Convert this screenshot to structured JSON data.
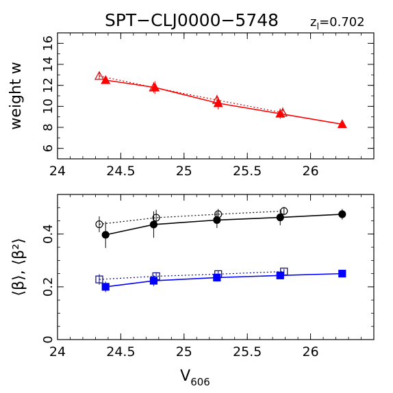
{
  "figure": {
    "title": "SPT−CLJ0000−5748",
    "redshift_label": "z",
    "redshift_subscript": "l",
    "redshift_value": "=0.702",
    "xlabel": "V",
    "xlabel_subscript": "606"
  },
  "chart_data": [
    {
      "type": "scatter",
      "panel": "top",
      "ylabel": "weight w",
      "xlim": [
        24,
        26.5
      ],
      "ylim": [
        5,
        17
      ],
      "x_ticks": [
        24,
        24.5,
        25,
        25.5,
        26
      ],
      "x_tick_labels": [
        "24",
        "24.5",
        "25",
        "25.5",
        "26"
      ],
      "y_ticks": [
        6,
        8,
        10,
        12,
        14,
        16
      ],
      "y_tick_labels": [
        "6",
        "8",
        "10",
        "12",
        "14",
        "16"
      ],
      "grid": false,
      "series": [
        {
          "marker": "open-triangle",
          "line": "dotted",
          "color": "#cc0000",
          "x": [
            24.33,
            24.76,
            25.26,
            25.78
          ],
          "y": [
            12.9,
            11.8,
            10.6,
            9.4
          ],
          "yerr": [
            0.3,
            0.5,
            0.5,
            0.5
          ]
        },
        {
          "marker": "filled-triangle",
          "line": "solid",
          "color": "#ff0000",
          "x": [
            24.38,
            24.77,
            25.27,
            25.76,
            26.25
          ],
          "y": [
            12.5,
            11.8,
            10.3,
            9.3,
            8.3
          ],
          "yerr": [
            0.3,
            0.6,
            0.6,
            0.5,
            0.3
          ]
        }
      ]
    },
    {
      "type": "scatter",
      "panel": "bottom",
      "ylabel": "⟨β⟩, ⟨β²⟩",
      "xlim": [
        24,
        26.5
      ],
      "ylim": [
        0,
        0.55
      ],
      "x_ticks": [
        24,
        24.5,
        25,
        25.5,
        26
      ],
      "x_tick_labels": [
        "24",
        "24.5",
        "25",
        "25.5",
        "26"
      ],
      "y_ticks": [
        0,
        0.2,
        0.4
      ],
      "y_tick_labels": [
        "0",
        "0.2",
        "0.4"
      ],
      "grid": false,
      "series": [
        {
          "marker": "open-circle",
          "line": "dotted",
          "color": "#000000",
          "x": [
            24.33,
            24.78,
            25.27,
            25.79
          ],
          "y": [
            0.437,
            0.462,
            0.475,
            0.487
          ],
          "yerr": [
            0.03,
            0.03,
            0.02,
            0.015
          ]
        },
        {
          "marker": "filled-circle",
          "line": "solid",
          "color": "#000000",
          "x": [
            24.38,
            24.76,
            25.26,
            25.76,
            26.25
          ],
          "y": [
            0.397,
            0.436,
            0.453,
            0.463,
            0.475
          ],
          "yerr": [
            0.05,
            0.05,
            0.03,
            0.03,
            0.02
          ]
        },
        {
          "marker": "open-square",
          "line": "dotted",
          "color": "#000080",
          "x": [
            24.33,
            24.78,
            25.27,
            25.79
          ],
          "y": [
            0.228,
            0.24,
            0.248,
            0.258
          ],
          "yerr": [
            0.02,
            0.015,
            0.012,
            0.01
          ]
        },
        {
          "marker": "filled-square",
          "line": "solid",
          "color": "#0000ff",
          "x": [
            24.38,
            24.76,
            25.26,
            25.76,
            26.25
          ],
          "y": [
            0.2,
            0.223,
            0.235,
            0.243,
            0.25
          ],
          "yerr": [
            0.02,
            0.02,
            0.015,
            0.01,
            0.008
          ]
        }
      ]
    }
  ]
}
